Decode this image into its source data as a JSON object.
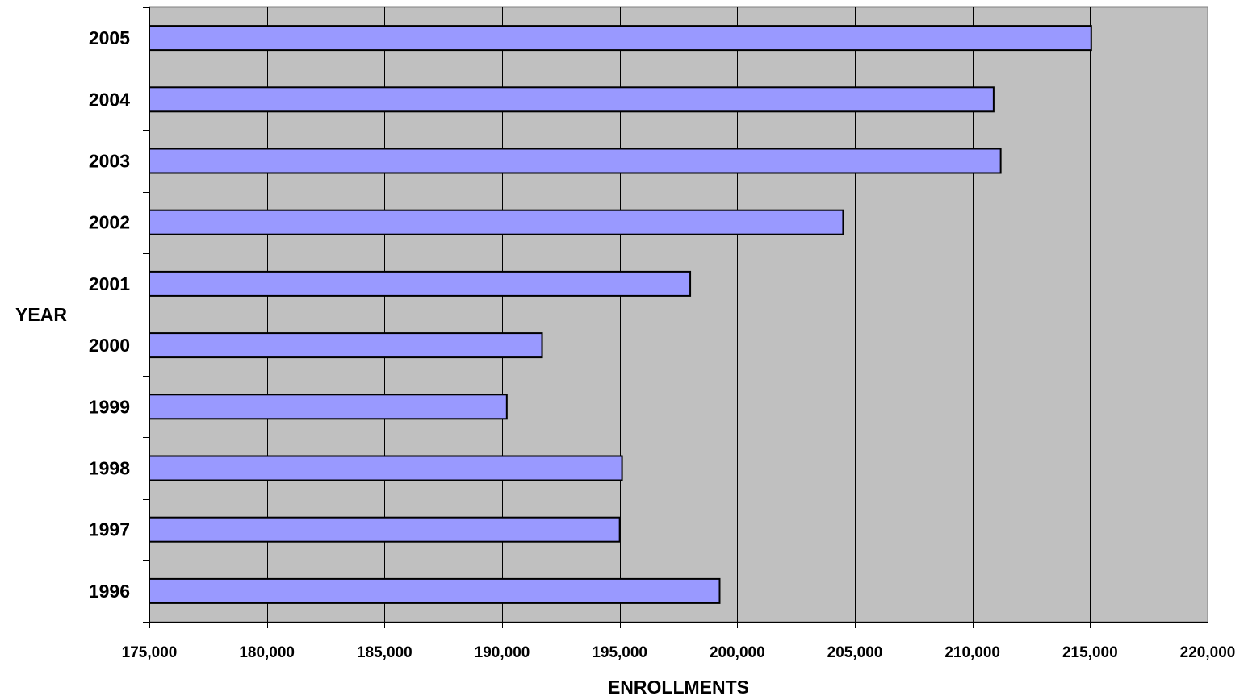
{
  "chart_data": {
    "type": "bar",
    "orientation": "horizontal",
    "title": "",
    "xlabel": "ENROLLMENTS",
    "ylabel": "YEAR",
    "categories": [
      "2005",
      "2004",
      "2003",
      "2002",
      "2001",
      "2000",
      "1999",
      "1998",
      "1997",
      "1996"
    ],
    "values": [
      215050,
      210900,
      211200,
      204500,
      198000,
      191700,
      190200,
      195100,
      195000,
      199250
    ],
    "xlim": [
      175000,
      220000
    ],
    "x_ticks": [
      175000,
      180000,
      185000,
      190000,
      195000,
      200000,
      205000,
      210000,
      215000,
      220000
    ],
    "x_tick_labels": [
      "175,000",
      "180,000",
      "185,000",
      "190,000",
      "195,000",
      "200,000",
      "205,000",
      "210,000",
      "215,000",
      "220,000"
    ],
    "grid": "vertical",
    "legend": "none",
    "colors": {
      "bar_fill": "#9999ff",
      "bar_stroke": "#000000",
      "plot_background": "#c0c0c0",
      "gridline": "#000000"
    }
  }
}
